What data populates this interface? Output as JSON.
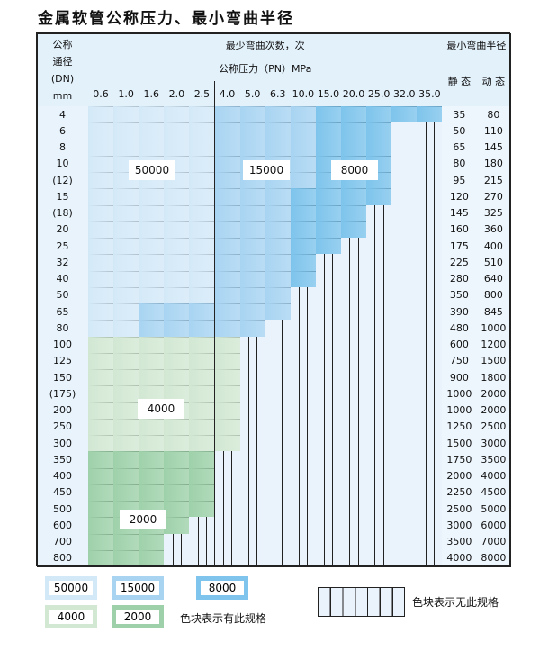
{
  "title": "金属软管公称压力、最小弯曲半径",
  "header": {
    "dn_label": [
      "公称",
      "通径",
      "(DN)",
      "mm"
    ],
    "bend_count_label": "最少弯曲次数，次",
    "pressure_label": "公称压力（PN）MPa",
    "radius_label": "最小弯曲半径",
    "static_label": "静 态",
    "dynamic_label": "动 态",
    "pressures": [
      "0.6",
      "1.0",
      "1.6",
      "2.0",
      "2.5",
      "4.0",
      "5.0",
      "6.3",
      "10.0",
      "15.0",
      "20.0",
      "25.0",
      "32.0",
      "35.0"
    ]
  },
  "colors": {
    "a": "#d4e9f8",
    "b": "#a8d4f2",
    "c": "#7ec4ec",
    "d": "#d2e8d3",
    "e": "#9ed1aa",
    "none": "#eaf3fb",
    "header": "#e3f1fb"
  },
  "rows": [
    {
      "dn": "4",
      "static": "35",
      "dynamic": "80",
      "fill": "aaaaabbbbccccc"
    },
    {
      "dn": "6",
      "static": "50",
      "dynamic": "110",
      "fill": "aaaaabbbbccchh"
    },
    {
      "dn": "8",
      "static": "65",
      "dynamic": "145",
      "fill": "aaaaabbbbccchh"
    },
    {
      "dn": "10",
      "static": "80",
      "dynamic": "180",
      "fill": "aaaaabbbbccchh"
    },
    {
      "dn": "(12)",
      "static": "95",
      "dynamic": "215",
      "fill": "aaaaabbbbccchh"
    },
    {
      "dn": "15",
      "static": "120",
      "dynamic": "270",
      "fill": "aaaaabbbcccchh"
    },
    {
      "dn": "(18)",
      "static": "145",
      "dynamic": "325",
      "fill": "aaaaabbbccchhh"
    },
    {
      "dn": "20",
      "static": "160",
      "dynamic": "360",
      "fill": "aaaaabbbccchhh"
    },
    {
      "dn": "25",
      "static": "175",
      "dynamic": "400",
      "fill": "aaaaabbbcchhhh"
    },
    {
      "dn": "32",
      "static": "225",
      "dynamic": "510",
      "fill": "aaaaabbbchhhhh"
    },
    {
      "dn": "40",
      "static": "280",
      "dynamic": "640",
      "fill": "aaaaabbbchhhhh"
    },
    {
      "dn": "50",
      "static": "350",
      "dynamic": "800",
      "fill": "aaaaabbbhhhhhh"
    },
    {
      "dn": "65",
      "static": "390",
      "dynamic": "845",
      "fill": "aabbbbbbhhhhhh"
    },
    {
      "dn": "80",
      "static": "480",
      "dynamic": "1000",
      "fill": "aabbbbbhhhhhhh"
    },
    {
      "dn": "100",
      "static": "600",
      "dynamic": "1200",
      "fill": "ddddddhhhhhhhh"
    },
    {
      "dn": "125",
      "static": "750",
      "dynamic": "1500",
      "fill": "ddddddhhhhhhhh"
    },
    {
      "dn": "150",
      "static": "900",
      "dynamic": "1800",
      "fill": "ddddddhhhhhhhh"
    },
    {
      "dn": "(175)",
      "static": "1000",
      "dynamic": "2000",
      "fill": "ddddddhhhhhhhh"
    },
    {
      "dn": "200",
      "static": "1000",
      "dynamic": "2000",
      "fill": "ddddddhhhhhhhh"
    },
    {
      "dn": "250",
      "static": "1250",
      "dynamic": "2500",
      "fill": "ddddddhhhhhhhh"
    },
    {
      "dn": "300",
      "static": "1500",
      "dynamic": "3000",
      "fill": "ddddddhhhhhhhh"
    },
    {
      "dn": "350",
      "static": "1750",
      "dynamic": "3500",
      "fill": "eeeeehhhhhhhhh"
    },
    {
      "dn": "400",
      "static": "2000",
      "dynamic": "4000",
      "fill": "eeeeehhhhhhhhh"
    },
    {
      "dn": "450",
      "static": "2250",
      "dynamic": "4500",
      "fill": "eeeeehhhhhhhhh"
    },
    {
      "dn": "500",
      "static": "2500",
      "dynamic": "5000",
      "fill": "eeeeehhhhhhhhh"
    },
    {
      "dn": "600",
      "static": "3000",
      "dynamic": "6000",
      "fill": "eeeehhhhhhhhhh"
    },
    {
      "dn": "700",
      "static": "3500",
      "dynamic": "7000",
      "fill": "eeehhhhhhhhhhh"
    },
    {
      "dn": "800",
      "static": "4000",
      "dynamic": "8000",
      "fill": "eeehhhhhhhhhhh"
    }
  ],
  "region_labels": {
    "a": "50000",
    "b": "15000",
    "c": "8000",
    "d": "4000",
    "e": "2000"
  },
  "legend": {
    "items": [
      {
        "key": "a",
        "label": "50000"
      },
      {
        "key": "b",
        "label": "15000"
      },
      {
        "key": "c",
        "label": "8000"
      },
      {
        "key": "d",
        "label": "4000"
      },
      {
        "key": "e",
        "label": "2000"
      }
    ],
    "has_spec_text": "色块表示有此规格",
    "no_spec_text": "色块表示无此规格"
  }
}
